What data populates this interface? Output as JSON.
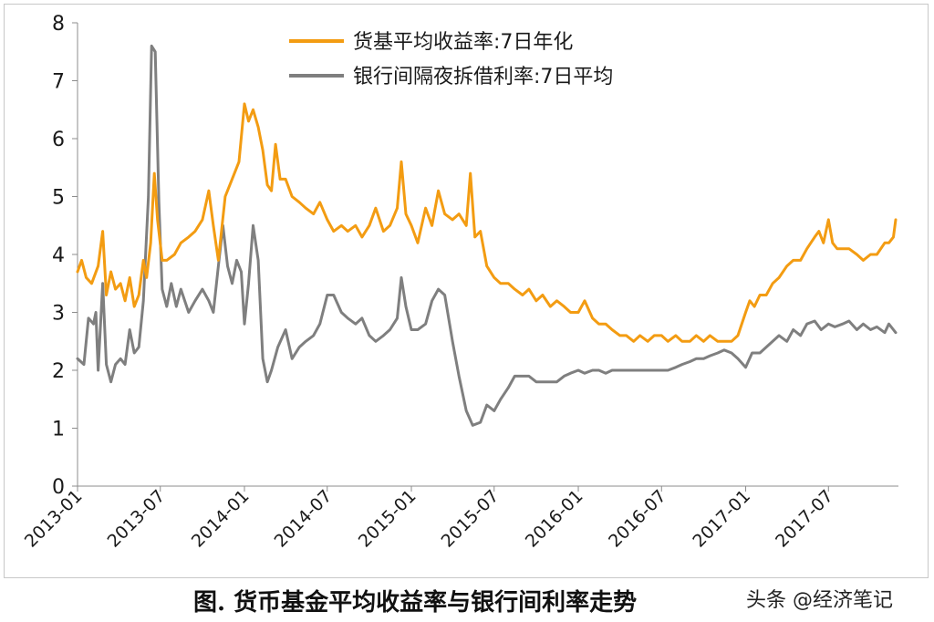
{
  "chart_data": {
    "type": "line",
    "title": "",
    "xlabel": "",
    "ylabel": "",
    "ylim": [
      0,
      8
    ],
    "yticks": [
      "0",
      "1",
      "2",
      "3",
      "4",
      "5",
      "6",
      "7",
      "8"
    ],
    "xlim": [
      "2013-01",
      "2017-12"
    ],
    "xticks": [
      "2013-01",
      "2013-07",
      "2014-01",
      "2014-07",
      "2015-01",
      "2015-07",
      "2016-01",
      "2016-07",
      "2017-01",
      "2017-07"
    ],
    "grid": false,
    "legend_position": "top-center",
    "series": [
      {
        "name": "货基平均收益率:7日年化",
        "color": "#f39c12",
        "points": [
          [
            "2013-01-01",
            3.7
          ],
          [
            "2013-01-10",
            3.9
          ],
          [
            "2013-01-20",
            3.6
          ],
          [
            "2013-02-01",
            3.5
          ],
          [
            "2013-02-15",
            3.8
          ],
          [
            "2013-02-25",
            4.4
          ],
          [
            "2013-03-05",
            3.3
          ],
          [
            "2013-03-15",
            3.7
          ],
          [
            "2013-03-25",
            3.4
          ],
          [
            "2013-04-05",
            3.5
          ],
          [
            "2013-04-15",
            3.2
          ],
          [
            "2013-04-25",
            3.6
          ],
          [
            "2013-05-05",
            3.1
          ],
          [
            "2013-05-15",
            3.3
          ],
          [
            "2013-05-25",
            3.9
          ],
          [
            "2013-06-01",
            3.6
          ],
          [
            "2013-06-10",
            4.2
          ],
          [
            "2013-06-18",
            5.4
          ],
          [
            "2013-06-25",
            4.6
          ],
          [
            "2013-07-05",
            3.9
          ],
          [
            "2013-07-15",
            3.9
          ],
          [
            "2013-08-01",
            4.0
          ],
          [
            "2013-08-15",
            4.2
          ],
          [
            "2013-09-01",
            4.3
          ],
          [
            "2013-09-15",
            4.4
          ],
          [
            "2013-10-01",
            4.6
          ],
          [
            "2013-10-15",
            5.1
          ],
          [
            "2013-10-25",
            4.5
          ],
          [
            "2013-11-05",
            3.9
          ],
          [
            "2013-11-20",
            5.0
          ],
          [
            "2013-12-05",
            5.3
          ],
          [
            "2013-12-20",
            5.6
          ],
          [
            "2014-01-01",
            6.6
          ],
          [
            "2014-01-10",
            6.3
          ],
          [
            "2014-01-20",
            6.5
          ],
          [
            "2014-01-31",
            6.2
          ],
          [
            "2014-02-10",
            5.8
          ],
          [
            "2014-02-20",
            5.2
          ],
          [
            "2014-03-01",
            5.1
          ],
          [
            "2014-03-10",
            5.9
          ],
          [
            "2014-03-20",
            5.3
          ],
          [
            "2014-04-01",
            5.3
          ],
          [
            "2014-04-15",
            5.0
          ],
          [
            "2014-05-01",
            4.9
          ],
          [
            "2014-05-15",
            4.8
          ],
          [
            "2014-06-01",
            4.7
          ],
          [
            "2014-06-15",
            4.9
          ],
          [
            "2014-07-01",
            4.6
          ],
          [
            "2014-07-15",
            4.4
          ],
          [
            "2014-08-01",
            4.5
          ],
          [
            "2014-08-15",
            4.4
          ],
          [
            "2014-09-01",
            4.5
          ],
          [
            "2014-09-15",
            4.3
          ],
          [
            "2014-10-01",
            4.5
          ],
          [
            "2014-10-15",
            4.8
          ],
          [
            "2014-11-01",
            4.4
          ],
          [
            "2014-11-15",
            4.5
          ],
          [
            "2014-12-01",
            4.8
          ],
          [
            "2014-12-10",
            5.6
          ],
          [
            "2014-12-20",
            4.7
          ],
          [
            "2015-01-01",
            4.5
          ],
          [
            "2015-01-15",
            4.2
          ],
          [
            "2015-02-01",
            4.8
          ],
          [
            "2015-02-15",
            4.5
          ],
          [
            "2015-03-01",
            5.1
          ],
          [
            "2015-03-15",
            4.7
          ],
          [
            "2015-04-01",
            4.6
          ],
          [
            "2015-04-15",
            4.7
          ],
          [
            "2015-05-01",
            4.5
          ],
          [
            "2015-05-10",
            5.4
          ],
          [
            "2015-05-20",
            4.3
          ],
          [
            "2015-06-01",
            4.4
          ],
          [
            "2015-06-15",
            3.8
          ],
          [
            "2015-07-01",
            3.6
          ],
          [
            "2015-07-15",
            3.5
          ],
          [
            "2015-08-01",
            3.5
          ],
          [
            "2015-08-15",
            3.4
          ],
          [
            "2015-09-01",
            3.3
          ],
          [
            "2015-09-15",
            3.4
          ],
          [
            "2015-10-01",
            3.2
          ],
          [
            "2015-10-15",
            3.3
          ],
          [
            "2015-11-01",
            3.1
          ],
          [
            "2015-11-15",
            3.2
          ],
          [
            "2015-12-01",
            3.1
          ],
          [
            "2015-12-15",
            3.0
          ],
          [
            "2016-01-01",
            3.0
          ],
          [
            "2016-01-15",
            3.2
          ],
          [
            "2016-02-01",
            2.9
          ],
          [
            "2016-02-15",
            2.8
          ],
          [
            "2016-03-01",
            2.8
          ],
          [
            "2016-03-15",
            2.7
          ],
          [
            "2016-04-01",
            2.6
          ],
          [
            "2016-04-15",
            2.6
          ],
          [
            "2016-05-01",
            2.5
          ],
          [
            "2016-05-15",
            2.6
          ],
          [
            "2016-06-01",
            2.5
          ],
          [
            "2016-06-15",
            2.6
          ],
          [
            "2016-07-01",
            2.6
          ],
          [
            "2016-07-15",
            2.5
          ],
          [
            "2016-08-01",
            2.6
          ],
          [
            "2016-08-15",
            2.5
          ],
          [
            "2016-09-01",
            2.5
          ],
          [
            "2016-09-15",
            2.6
          ],
          [
            "2016-10-01",
            2.5
          ],
          [
            "2016-10-15",
            2.6
          ],
          [
            "2016-11-01",
            2.5
          ],
          [
            "2016-11-15",
            2.5
          ],
          [
            "2016-12-01",
            2.5
          ],
          [
            "2016-12-15",
            2.6
          ],
          [
            "2017-01-01",
            3.0
          ],
          [
            "2017-01-10",
            3.2
          ],
          [
            "2017-01-20",
            3.1
          ],
          [
            "2017-02-01",
            3.3
          ],
          [
            "2017-02-15",
            3.3
          ],
          [
            "2017-03-01",
            3.5
          ],
          [
            "2017-03-15",
            3.6
          ],
          [
            "2017-04-01",
            3.8
          ],
          [
            "2017-04-15",
            3.9
          ],
          [
            "2017-05-01",
            3.9
          ],
          [
            "2017-05-15",
            4.1
          ],
          [
            "2017-06-01",
            4.3
          ],
          [
            "2017-06-10",
            4.4
          ],
          [
            "2017-06-20",
            4.2
          ],
          [
            "2017-07-01",
            4.6
          ],
          [
            "2017-07-10",
            4.2
          ],
          [
            "2017-07-20",
            4.1
          ],
          [
            "2017-08-01",
            4.1
          ],
          [
            "2017-08-15",
            4.1
          ],
          [
            "2017-09-01",
            4.0
          ],
          [
            "2017-09-15",
            3.9
          ],
          [
            "2017-10-01",
            4.0
          ],
          [
            "2017-10-15",
            4.0
          ],
          [
            "2017-11-01",
            4.2
          ],
          [
            "2017-11-10",
            4.2
          ],
          [
            "2017-11-20",
            4.3
          ],
          [
            "2017-11-25",
            4.6
          ]
        ]
      },
      {
        "name": "银行间隔夜拆借利率:7日平均",
        "color": "#7f7f7f",
        "points": [
          [
            "2013-01-01",
            2.2
          ],
          [
            "2013-01-15",
            2.1
          ],
          [
            "2013-01-25",
            2.9
          ],
          [
            "2013-02-05",
            2.8
          ],
          [
            "2013-02-10",
            3.0
          ],
          [
            "2013-02-15",
            2.0
          ],
          [
            "2013-02-25",
            3.5
          ],
          [
            "2013-03-05",
            2.1
          ],
          [
            "2013-03-15",
            1.8
          ],
          [
            "2013-03-25",
            2.1
          ],
          [
            "2013-04-05",
            2.2
          ],
          [
            "2013-04-15",
            2.1
          ],
          [
            "2013-04-25",
            2.7
          ],
          [
            "2013-05-05",
            2.3
          ],
          [
            "2013-05-15",
            2.4
          ],
          [
            "2013-05-25",
            3.2
          ],
          [
            "2013-06-05",
            5.0
          ],
          [
            "2013-06-12",
            7.6
          ],
          [
            "2013-06-20",
            7.5
          ],
          [
            "2013-06-28",
            4.9
          ],
          [
            "2013-07-05",
            3.4
          ],
          [
            "2013-07-15",
            3.1
          ],
          [
            "2013-07-25",
            3.5
          ],
          [
            "2013-08-05",
            3.1
          ],
          [
            "2013-08-15",
            3.4
          ],
          [
            "2013-09-01",
            3.0
          ],
          [
            "2013-09-15",
            3.2
          ],
          [
            "2013-10-01",
            3.4
          ],
          [
            "2013-10-15",
            3.2
          ],
          [
            "2013-10-25",
            3.0
          ],
          [
            "2013-11-05",
            3.8
          ],
          [
            "2013-11-15",
            4.5
          ],
          [
            "2013-11-25",
            3.8
          ],
          [
            "2013-12-05",
            3.5
          ],
          [
            "2013-12-15",
            3.9
          ],
          [
            "2013-12-25",
            3.7
          ],
          [
            "2014-01-01",
            2.8
          ],
          [
            "2014-01-10",
            3.5
          ],
          [
            "2014-01-20",
            4.5
          ],
          [
            "2014-01-31",
            3.9
          ],
          [
            "2014-02-10",
            2.2
          ],
          [
            "2014-02-20",
            1.8
          ],
          [
            "2014-03-01",
            2.0
          ],
          [
            "2014-03-15",
            2.4
          ],
          [
            "2014-04-01",
            2.7
          ],
          [
            "2014-04-15",
            2.2
          ],
          [
            "2014-05-01",
            2.4
          ],
          [
            "2014-05-15",
            2.5
          ],
          [
            "2014-06-01",
            2.6
          ],
          [
            "2014-06-15",
            2.8
          ],
          [
            "2014-07-01",
            3.3
          ],
          [
            "2014-07-15",
            3.3
          ],
          [
            "2014-08-01",
            3.0
          ],
          [
            "2014-08-15",
            2.9
          ],
          [
            "2014-09-01",
            2.8
          ],
          [
            "2014-09-15",
            2.9
          ],
          [
            "2014-10-01",
            2.6
          ],
          [
            "2014-10-15",
            2.5
          ],
          [
            "2014-11-01",
            2.6
          ],
          [
            "2014-11-15",
            2.7
          ],
          [
            "2014-12-01",
            2.9
          ],
          [
            "2014-12-10",
            3.6
          ],
          [
            "2014-12-20",
            3.1
          ],
          [
            "2015-01-01",
            2.7
          ],
          [
            "2015-01-15",
            2.7
          ],
          [
            "2015-02-01",
            2.8
          ],
          [
            "2015-02-15",
            3.2
          ],
          [
            "2015-03-01",
            3.4
          ],
          [
            "2015-03-15",
            3.3
          ],
          [
            "2015-04-01",
            2.5
          ],
          [
            "2015-04-15",
            1.9
          ],
          [
            "2015-05-01",
            1.3
          ],
          [
            "2015-05-15",
            1.05
          ],
          [
            "2015-06-01",
            1.1
          ],
          [
            "2015-06-15",
            1.4
          ],
          [
            "2015-07-01",
            1.3
          ],
          [
            "2015-07-15",
            1.5
          ],
          [
            "2015-08-01",
            1.7
          ],
          [
            "2015-08-15",
            1.9
          ],
          [
            "2015-09-01",
            1.9
          ],
          [
            "2015-09-15",
            1.9
          ],
          [
            "2015-10-01",
            1.8
          ],
          [
            "2015-10-15",
            1.8
          ],
          [
            "2015-11-01",
            1.8
          ],
          [
            "2015-11-15",
            1.8
          ],
          [
            "2015-12-01",
            1.9
          ],
          [
            "2015-12-15",
            1.95
          ],
          [
            "2016-01-01",
            2.0
          ],
          [
            "2016-01-15",
            1.95
          ],
          [
            "2016-02-01",
            2.0
          ],
          [
            "2016-02-15",
            2.0
          ],
          [
            "2016-03-01",
            1.95
          ],
          [
            "2016-03-15",
            2.0
          ],
          [
            "2016-04-01",
            2.0
          ],
          [
            "2016-04-15",
            2.0
          ],
          [
            "2016-05-01",
            2.0
          ],
          [
            "2016-05-15",
            2.0
          ],
          [
            "2016-06-01",
            2.0
          ],
          [
            "2016-06-15",
            2.0
          ],
          [
            "2016-07-01",
            2.0
          ],
          [
            "2016-07-15",
            2.0
          ],
          [
            "2016-08-01",
            2.05
          ],
          [
            "2016-08-15",
            2.1
          ],
          [
            "2016-09-01",
            2.15
          ],
          [
            "2016-09-15",
            2.2
          ],
          [
            "2016-10-01",
            2.2
          ],
          [
            "2016-10-15",
            2.25
          ],
          [
            "2016-11-01",
            2.3
          ],
          [
            "2016-11-15",
            2.35
          ],
          [
            "2016-12-01",
            2.3
          ],
          [
            "2016-12-15",
            2.2
          ],
          [
            "2017-01-01",
            2.05
          ],
          [
            "2017-01-15",
            2.3
          ],
          [
            "2017-02-01",
            2.3
          ],
          [
            "2017-02-15",
            2.4
          ],
          [
            "2017-03-01",
            2.5
          ],
          [
            "2017-03-15",
            2.6
          ],
          [
            "2017-04-01",
            2.5
          ],
          [
            "2017-04-15",
            2.7
          ],
          [
            "2017-05-01",
            2.6
          ],
          [
            "2017-05-15",
            2.8
          ],
          [
            "2017-06-01",
            2.85
          ],
          [
            "2017-06-15",
            2.7
          ],
          [
            "2017-07-01",
            2.8
          ],
          [
            "2017-07-15",
            2.75
          ],
          [
            "2017-08-01",
            2.8
          ],
          [
            "2017-08-15",
            2.85
          ],
          [
            "2017-09-01",
            2.7
          ],
          [
            "2017-09-15",
            2.8
          ],
          [
            "2017-10-01",
            2.7
          ],
          [
            "2017-10-15",
            2.75
          ],
          [
            "2017-11-01",
            2.65
          ],
          [
            "2017-11-10",
            2.8
          ],
          [
            "2017-11-20",
            2.7
          ],
          [
            "2017-11-25",
            2.65
          ]
        ]
      }
    ]
  },
  "caption": "图.  货币基金平均收益率与银行间利率走势",
  "watermark": "头条 @经济笔记"
}
